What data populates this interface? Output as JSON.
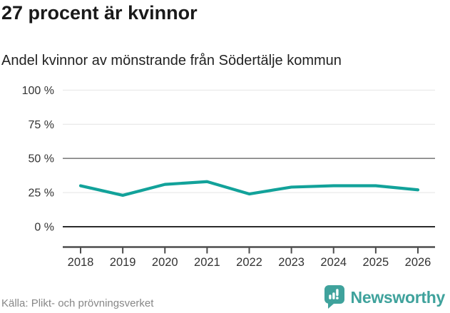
{
  "header": {
    "title": "27 procent är kvinnor",
    "subtitle": "Andel kvinnor av mönstrande från Södertälje kommun"
  },
  "chart_data": {
    "type": "line",
    "x": [
      "2018",
      "2019",
      "2020",
      "2021",
      "2022",
      "2023",
      "2024",
      "2025",
      "2026"
    ],
    "series": [
      {
        "name": "Andel kvinnor av mönstrande",
        "values": [
          30,
          23,
          31,
          33,
          24,
          29,
          30,
          30,
          27
        ]
      }
    ],
    "title": "27 procent är kvinnor",
    "subtitle": "Andel kvinnor av mönstrande från Södertälje kommun",
    "xlabel": "",
    "ylabel": "",
    "ylim": [
      0,
      100
    ],
    "yticks": [
      0,
      25,
      50,
      75,
      100
    ],
    "ytick_labels": [
      "0 %",
      "25 %",
      "50 %",
      "75 %",
      "100 %"
    ],
    "grid": true,
    "reference_line_y": 50,
    "legend": "none"
  },
  "footer": {
    "source": "Källa: Plikt- och prövningsverket",
    "brand": "Newsworthy"
  },
  "colors": {
    "accent_teal": "#12a29a",
    "brand_teal": "#3fa29c",
    "title_text": "#1a1a1a",
    "subtitle_text": "#222222",
    "axis_text": "#333333",
    "grid_light": "#e4e4e4",
    "grid_mid": "#7f7f7f",
    "baseline_dark": "#2b2b2b",
    "axis_line": "#4d4d4d",
    "source_text": "#878787",
    "background": "#ffffff"
  }
}
